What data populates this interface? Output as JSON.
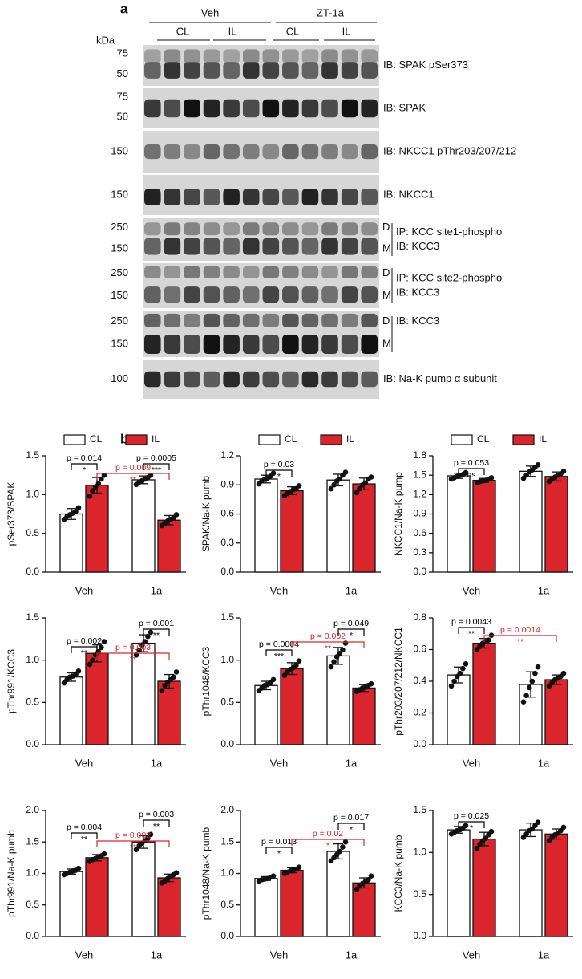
{
  "blot": {
    "panel_label": "a",
    "groups": [
      "Veh",
      "ZT-1a"
    ],
    "conditions": [
      "CL",
      "IL",
      "CL",
      "IL"
    ],
    "unit": "kDa",
    "rows": [
      {
        "markers": [
          "75",
          "50"
        ],
        "label": [
          "IB: SPAK pSer373"
        ]
      },
      {
        "markers": [
          "75",
          "50"
        ],
        "label": [
          "IB: SPAK"
        ]
      },
      {
        "markers": [
          "150"
        ],
        "label": [
          "IB: NKCC1 pThr203/207/212"
        ]
      },
      {
        "markers": [
          "150"
        ],
        "label": [
          "IB: NKCC1"
        ]
      },
      {
        "markers": [
          "250",
          "150"
        ],
        "forms": [
          "D",
          "M"
        ],
        "label": [
          "IP: KCC site1-phospho",
          "IB: KCC3"
        ]
      },
      {
        "markers": [
          "250",
          "150"
        ],
        "forms": [
          "D",
          "M"
        ],
        "label": [
          "IP: KCC site2-phospho",
          "IB: KCC3"
        ]
      },
      {
        "markers": [
          "250",
          "150"
        ],
        "forms": [
          "D",
          "M"
        ],
        "label": [
          "IB: KCC3"
        ]
      },
      {
        "markers": [
          "100"
        ],
        "label": [
          "IB: Na-K pump α subunit"
        ]
      }
    ]
  },
  "panel_label_b": "b",
  "chart_data": [
    {
      "type": "bar",
      "y_label": "pSer373/SPAK",
      "categories": [
        "Veh",
        "1a"
      ],
      "ylim": [
        0,
        1.5
      ],
      "yticks": [
        {
          "value": 0,
          "label": "0.0"
        },
        0.5,
        {
          "value": 1,
          "label": "1.0"
        },
        1.5
      ],
      "legend": true,
      "series": [
        {
          "name": "CL",
          "color": "#ffffff",
          "values": [
            0.75,
            1.19
          ],
          "errors": [
            0.07,
            0.05
          ],
          "points": [
            [
              0.68,
              0.72,
              0.74,
              0.76,
              0.78,
              0.83
            ],
            [
              1.13,
              1.16,
              1.18,
              1.2,
              1.22,
              1.25
            ]
          ]
        },
        {
          "name": "IL",
          "color": "#d9252b",
          "values": [
            1.12,
            0.67
          ],
          "errors": [
            0.1,
            0.06
          ],
          "points": [
            [
              0.98,
              1.05,
              1.1,
              1.14,
              1.2,
              1.25
            ],
            [
              0.6,
              0.63,
              0.66,
              0.68,
              0.7,
              0.74
            ]
          ]
        }
      ],
      "annotations": [
        {
          "label": "p = 0.014",
          "stars": "*",
          "color": "#000000"
        },
        {
          "label": "p = 0.009",
          "stars": "**",
          "color": "#d9252b"
        },
        {
          "label": "p = 0.0005",
          "stars": "***",
          "color": "#000000"
        }
      ]
    },
    {
      "type": "bar",
      "y_label": "SPAK/Na-K pumb",
      "categories": [
        "Veh",
        "1a"
      ],
      "ylim": [
        0,
        1.2
      ],
      "yticks": [
        {
          "value": 0,
          "label": "0.0"
        },
        0.3,
        0.6,
        0.9,
        1.2
      ],
      "legend": true,
      "series": [
        {
          "name": "CL",
          "color": "#ffffff",
          "values": [
            0.96,
            0.95
          ],
          "errors": [
            0.04,
            0.06
          ],
          "points": [
            [
              0.91,
              0.94,
              0.96,
              0.97,
              0.99,
              1.02
            ],
            [
              0.86,
              0.9,
              0.94,
              0.96,
              1.0,
              1.03
            ]
          ]
        },
        {
          "name": "IL",
          "color": "#d9252b",
          "values": [
            0.84,
            0.91
          ],
          "errors": [
            0.04,
            0.06
          ],
          "points": [
            [
              0.79,
              0.81,
              0.83,
              0.85,
              0.86,
              0.89
            ],
            [
              0.82,
              0.86,
              0.9,
              0.92,
              0.96,
              0.98
            ]
          ]
        }
      ],
      "annotations": [
        {
          "label": "p = 0.03",
          "stars": "*",
          "color": "#000000"
        }
      ]
    },
    {
      "type": "bar",
      "y_label": "NKCC1/Na-K pump",
      "categories": [
        "Veh",
        "1a"
      ],
      "ylim": [
        0,
        1.8
      ],
      "yticks": [
        {
          "value": 0,
          "label": "0.0"
        },
        0.3,
        0.6,
        0.9,
        1.2,
        1.5,
        1.8
      ],
      "legend": true,
      "series": [
        {
          "name": "CL",
          "color": "#ffffff",
          "values": [
            1.49,
            1.56
          ],
          "errors": [
            0.04,
            0.08
          ],
          "points": [
            [
              1.44,
              1.46,
              1.48,
              1.5,
              1.51,
              1.54
            ],
            [
              1.45,
              1.5,
              1.55,
              1.58,
              1.62,
              1.66
            ]
          ]
        },
        {
          "name": "IL",
          "color": "#d9252b",
          "values": [
            1.42,
            1.48
          ],
          "errors": [
            0.03,
            0.07
          ],
          "points": [
            [
              1.38,
              1.4,
              1.41,
              1.42,
              1.44,
              1.46
            ],
            [
              1.4,
              1.44,
              1.47,
              1.5,
              1.52,
              1.56
            ]
          ]
        }
      ],
      "annotations": [
        {
          "label": "p = 0.053",
          "stars": "ns",
          "color": "#000000"
        }
      ]
    },
    {
      "type": "bar",
      "y_label": "pThr991/KCC3",
      "categories": [
        "Veh",
        "1a"
      ],
      "ylim": [
        0,
        1.5
      ],
      "yticks": [
        {
          "value": 0,
          "label": "0.0"
        },
        0.5,
        {
          "value": 1,
          "label": "1.0"
        },
        1.5
      ],
      "series": [
        {
          "color": "#ffffff",
          "values": [
            0.8,
            1.2
          ],
          "errors": [
            0.05,
            0.1
          ],
          "points": [
            [
              0.73,
              0.77,
              0.8,
              0.81,
              0.83,
              0.87
            ],
            [
              1.06,
              1.12,
              1.18,
              1.22,
              1.28,
              1.33
            ]
          ]
        },
        {
          "color": "#d9252b",
          "values": [
            1.08,
            0.75
          ],
          "errors": [
            0.1,
            0.08
          ],
          "points": [
            [
              0.95,
              1.0,
              1.06,
              1.1,
              1.15,
              1.22
            ],
            [
              0.64,
              0.7,
              0.74,
              0.77,
              0.8,
              0.86
            ]
          ]
        }
      ],
      "annotations": [
        {
          "label": "p = 0.002",
          "stars": "**",
          "color": "#000000"
        },
        {
          "label": "p = 0.003",
          "stars": "**",
          "color": "#d9252b"
        },
        {
          "label": "p = 0.001",
          "stars": "**",
          "color": "#000000"
        }
      ]
    },
    {
      "type": "bar",
      "y_label": "pThr1048/KCC3",
      "categories": [
        "Veh",
        "1a"
      ],
      "ylim": [
        0,
        1.5
      ],
      "yticks": [
        {
          "value": 0,
          "label": "0.0"
        },
        0.5,
        {
          "value": 1,
          "label": "1.0"
        },
        1.5
      ],
      "series": [
        {
          "color": "#ffffff",
          "values": [
            0.7,
            1.05
          ],
          "errors": [
            0.05,
            0.1
          ],
          "points": [
            [
              0.64,
              0.67,
              0.7,
              0.71,
              0.73,
              0.77
            ],
            [
              0.92,
              0.98,
              1.04,
              1.08,
              1.12,
              1.2
            ]
          ]
        },
        {
          "color": "#d9252b",
          "values": [
            0.9,
            0.67
          ],
          "errors": [
            0.07,
            0.04
          ],
          "points": [
            [
              0.82,
              0.86,
              0.89,
              0.91,
              0.94,
              0.99
            ],
            [
              0.63,
              0.65,
              0.67,
              0.68,
              0.7,
              0.72
            ]
          ]
        }
      ],
      "annotations": [
        {
          "label": "p = 0.0004",
          "stars": "***",
          "color": "#000000"
        },
        {
          "label": "p = 0.002",
          "stars": "**",
          "color": "#d9252b"
        },
        {
          "label": "p = 0.049",
          "stars": "*",
          "color": "#000000"
        }
      ]
    },
    {
      "type": "bar",
      "y_label": "pThr203/207/212/NKCC1",
      "categories": [
        "Veh",
        "1a"
      ],
      "ylim": [
        0,
        0.8
      ],
      "yticks": [
        {
          "value": 0,
          "label": "0.0"
        },
        0.2,
        0.4,
        0.6,
        0.8
      ],
      "series": [
        {
          "color": "#ffffff",
          "values": [
            0.44,
            0.38
          ],
          "errors": [
            0.05,
            0.08
          ],
          "points": [
            [
              0.37,
              0.4,
              0.43,
              0.45,
              0.48,
              0.51
            ],
            [
              0.27,
              0.31,
              0.36,
              0.4,
              0.45,
              0.49
            ]
          ]
        },
        {
          "color": "#d9252b",
          "values": [
            0.64,
            0.41
          ],
          "errors": [
            0.03,
            0.03
          ],
          "points": [
            [
              0.6,
              0.62,
              0.64,
              0.65,
              0.66,
              0.69
            ],
            [
              0.37,
              0.39,
              0.41,
              0.42,
              0.43,
              0.45
            ]
          ]
        }
      ],
      "annotations": [
        {
          "label": "p = 0.0043",
          "stars": "**",
          "color": "#000000"
        },
        {
          "label": "p = 0.0014",
          "stars": "**",
          "color": "#d9252b"
        }
      ]
    },
    {
      "type": "bar",
      "y_label": "pThr991/Na-K pumb",
      "categories": [
        "Veh",
        "1a"
      ],
      "ylim": [
        0,
        2
      ],
      "yticks": [
        {
          "value": 0,
          "label": "0.0"
        },
        0.5,
        {
          "value": 1,
          "label": "1.0"
        },
        1.5,
        {
          "value": 2,
          "label": "2.0"
        }
      ],
      "series": [
        {
          "color": "#ffffff",
          "values": [
            1.03,
            1.5
          ],
          "errors": [
            0.04,
            0.1
          ],
          "points": [
            [
              0.98,
              1.0,
              1.02,
              1.04,
              1.05,
              1.08
            ],
            [
              1.38,
              1.44,
              1.48,
              1.52,
              1.56,
              1.62
            ]
          ]
        },
        {
          "color": "#d9252b",
          "values": [
            1.25,
            0.93
          ],
          "errors": [
            0.05,
            0.06
          ],
          "points": [
            [
              1.19,
              1.22,
              1.24,
              1.26,
              1.28,
              1.31
            ],
            [
              0.85,
              0.88,
              0.92,
              0.95,
              0.98,
              1.01
            ]
          ]
        }
      ],
      "annotations": [
        {
          "label": "p = 0.004",
          "stars": "**",
          "color": "#000000"
        },
        {
          "label": "p = 0.002",
          "stars": "**",
          "color": "#d9252b"
        },
        {
          "label": "p = 0.003",
          "stars": "**",
          "color": "#000000"
        }
      ]
    },
    {
      "type": "bar",
      "y_label": "pThr1048/Na-K pumb",
      "categories": [
        "Veh",
        "1a"
      ],
      "ylim": [
        0,
        2
      ],
      "yticks": [
        {
          "value": 0,
          "label": "0.0"
        },
        0.5,
        {
          "value": 1,
          "label": "1.0"
        },
        1.5,
        {
          "value": 2,
          "label": "2.0"
        }
      ],
      "series": [
        {
          "color": "#ffffff",
          "values": [
            0.92,
            1.35
          ],
          "errors": [
            0.03,
            0.12
          ],
          "points": [
            [
              0.88,
              0.9,
              0.91,
              0.92,
              0.94,
              0.96
            ],
            [
              1.2,
              1.25,
              1.3,
              1.35,
              1.42,
              1.5
            ]
          ]
        },
        {
          "color": "#d9252b",
          "values": [
            1.05,
            0.85
          ],
          "errors": [
            0.04,
            0.08
          ],
          "points": [
            [
              1.0,
              1.02,
              1.04,
              1.05,
              1.07,
              1.1
            ],
            [
              0.75,
              0.8,
              0.84,
              0.87,
              0.9,
              0.96
            ]
          ]
        }
      ],
      "annotations": [
        {
          "label": "p = 0.013",
          "stars": "*",
          "color": "#000000"
        },
        {
          "label": "p = 0.02",
          "stars": "*",
          "color": "#d9252b"
        },
        {
          "label": "p = 0.017",
          "stars": "*",
          "color": "#000000"
        }
      ]
    },
    {
      "type": "bar",
      "y_label": "KCC3/Na-K pumb",
      "categories": [
        "Veh",
        "1a"
      ],
      "ylim": [
        0,
        1.5
      ],
      "yticks": [
        {
          "value": 0,
          "label": "0.0"
        },
        0.5,
        {
          "value": 1,
          "label": "1.0"
        },
        1.5
      ],
      "series": [
        {
          "color": "#ffffff",
          "values": [
            1.27,
            1.27
          ],
          "errors": [
            0.04,
            0.08
          ],
          "points": [
            [
              1.22,
              1.24,
              1.26,
              1.27,
              1.29,
              1.32
            ],
            [
              1.18,
              1.22,
              1.26,
              1.28,
              1.32,
              1.36
            ]
          ]
        },
        {
          "color": "#d9252b",
          "values": [
            1.16,
            1.22
          ],
          "errors": [
            0.08,
            0.06
          ],
          "points": [
            [
              1.05,
              1.1,
              1.14,
              1.17,
              1.21,
              1.25
            ],
            [
              1.14,
              1.18,
              1.21,
              1.23,
              1.26,
              1.3
            ]
          ]
        }
      ],
      "annotations": [
        {
          "label": "p = 0.025",
          "stars": "*",
          "color": "#000000"
        }
      ]
    }
  ]
}
